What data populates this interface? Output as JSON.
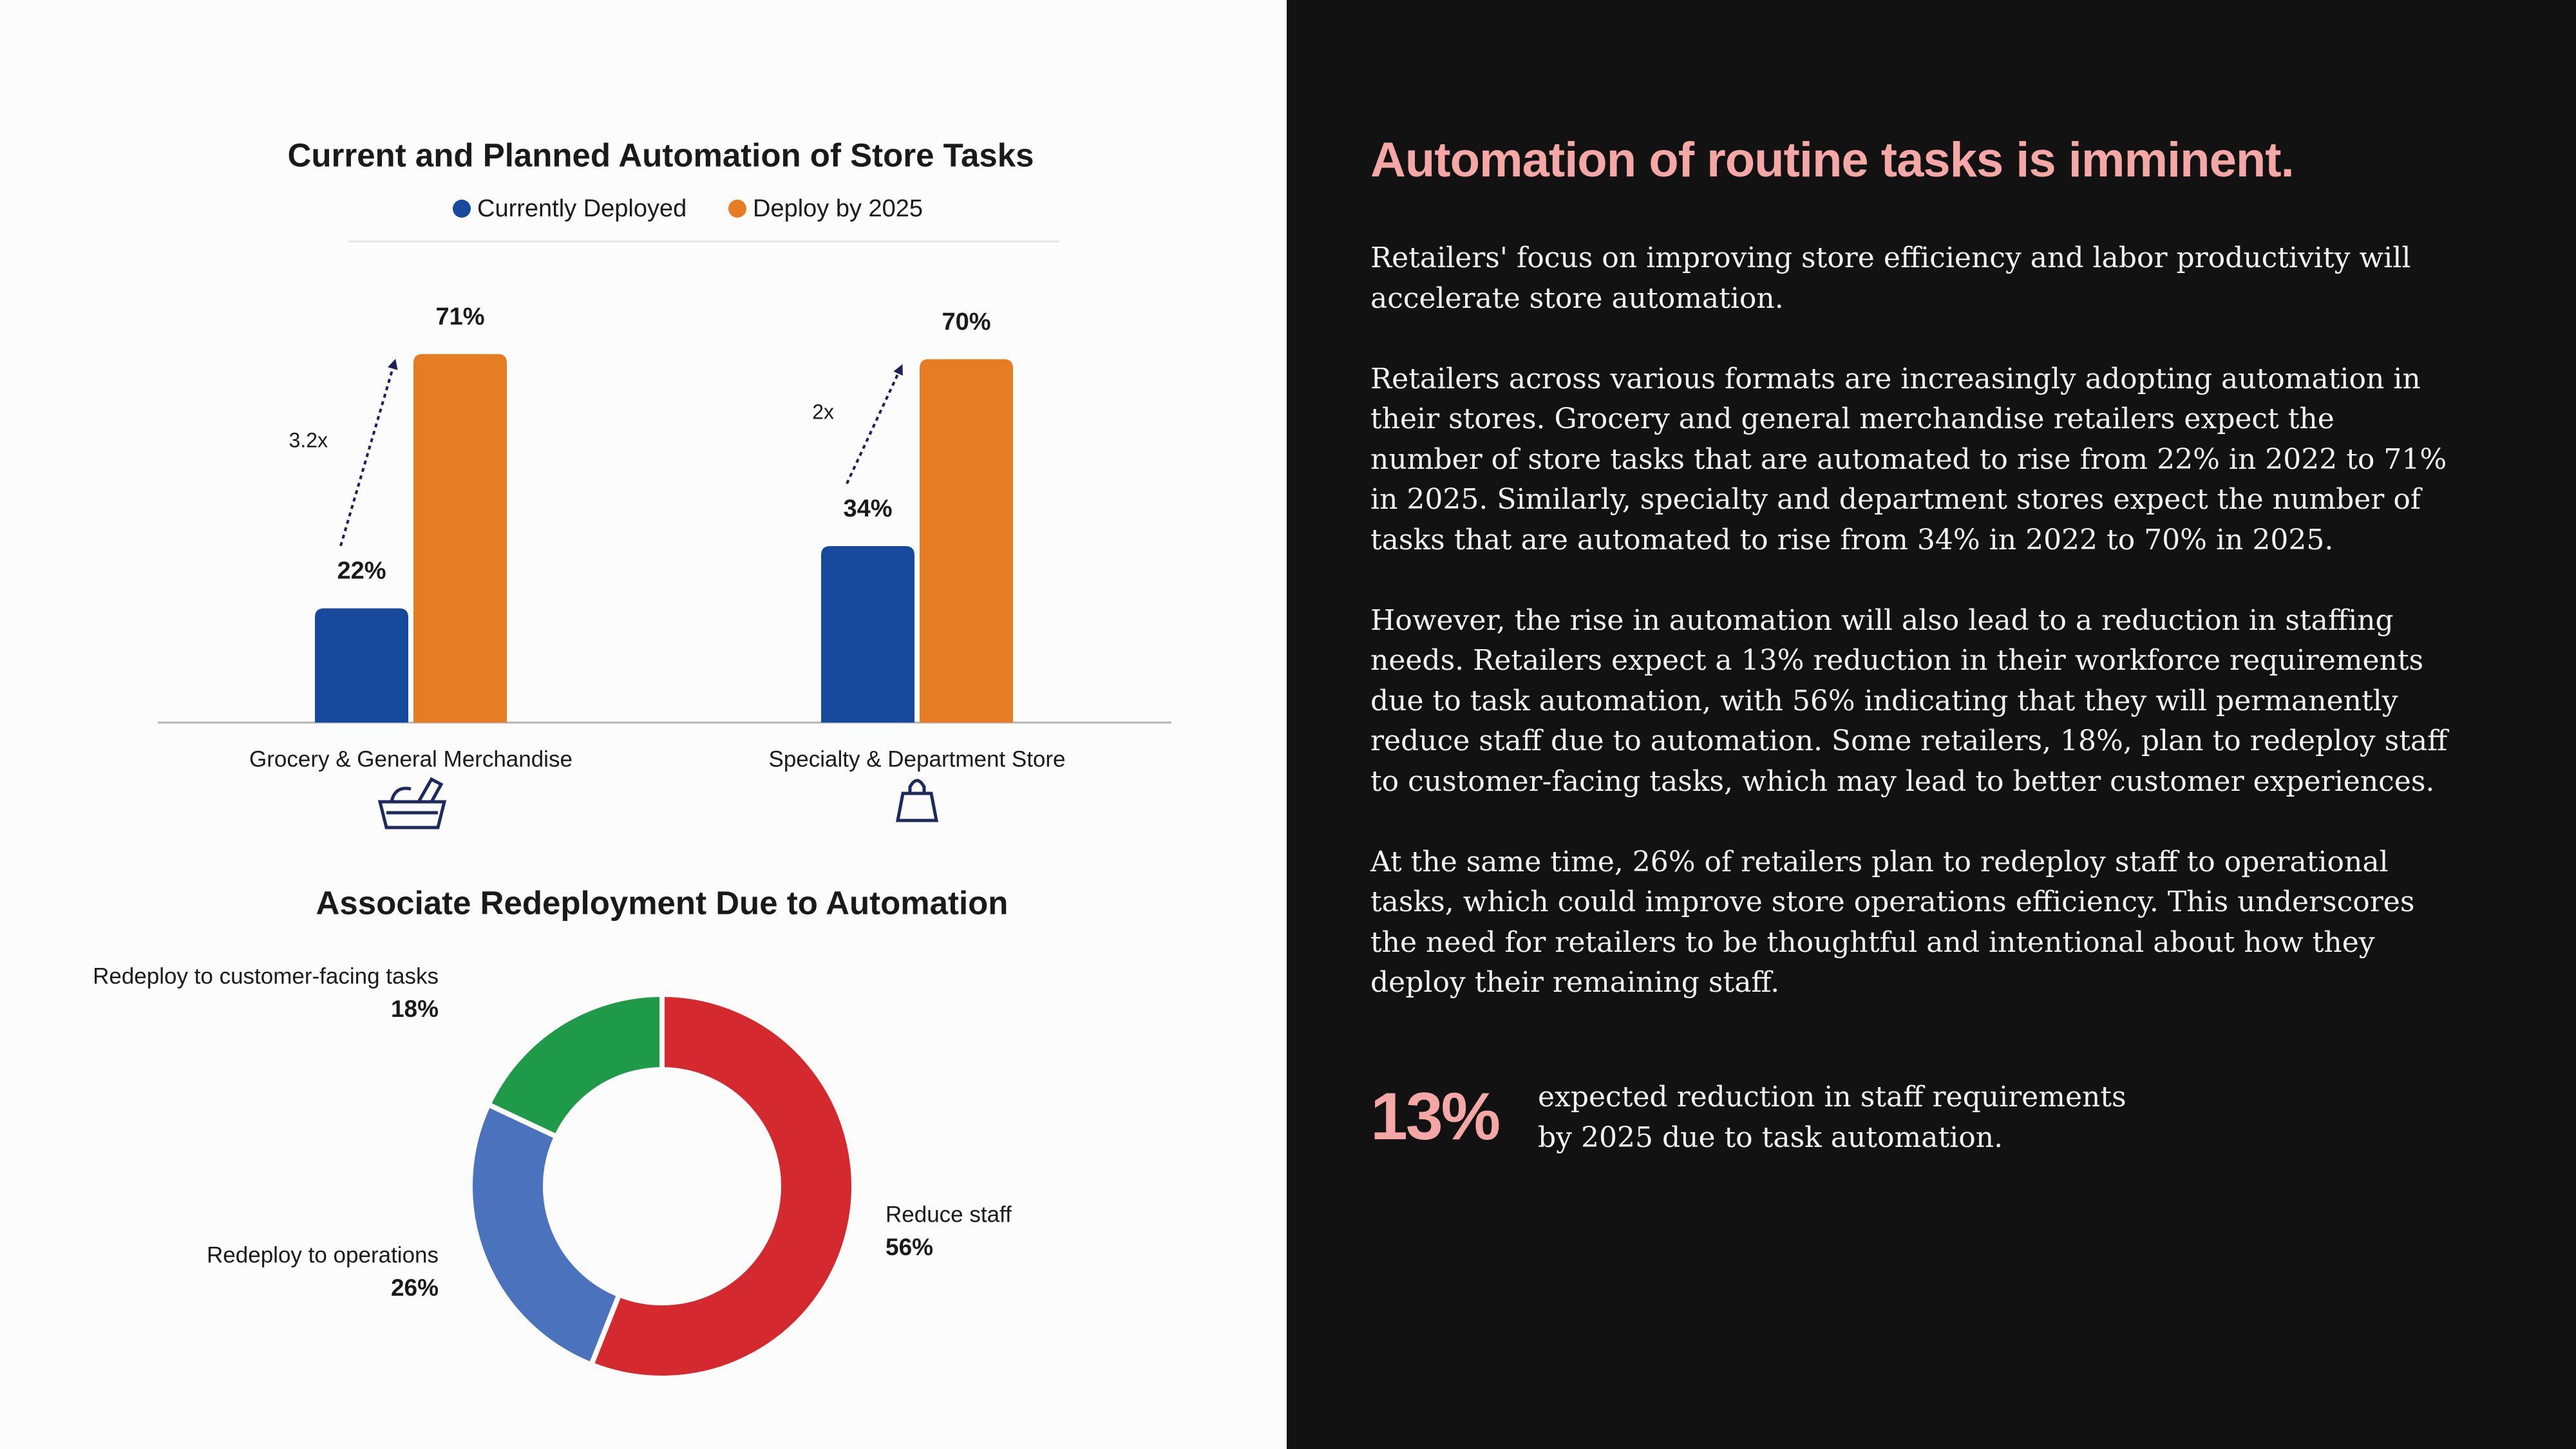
{
  "chart_data": [
    {
      "type": "bar",
      "title": "Current and Planned Automation of Store Tasks",
      "categories": [
        "Grocery & General Merchandise",
        "Specialty & Department Store"
      ],
      "series": [
        {
          "name": "Currently Deployed",
          "color": "#174a9c",
          "values": [
            22,
            34
          ],
          "value_labels": [
            "22%",
            "34%"
          ]
        },
        {
          "name": "Deploy by 2025",
          "color": "#e67d24",
          "values": [
            71,
            70
          ],
          "value_labels": [
            "71%",
            "70%"
          ]
        }
      ],
      "annotations": [
        "3.2x",
        "2x"
      ],
      "ylim": [
        0,
        100
      ]
    },
    {
      "type": "donut",
      "title": "Associate Redeployment Due to Automation",
      "categories": [
        "Reduce staff",
        "Redeploy to operations",
        "Redeploy to customer-facing tasks"
      ],
      "values": [
        56,
        26,
        18
      ],
      "value_labels": [
        "56%",
        "26%",
        "18%"
      ],
      "colors": [
        "#d42a2f",
        "#4a72bd",
        "#1e9a48"
      ]
    }
  ],
  "panel": {
    "title": "Automation of routine tasks is imminent.",
    "paragraphs": [
      "Retailers' focus on improving store efficiency and labor productivity will accelerate store automation.",
      "Retailers across various formats are increasingly adopting automation in their stores. Grocery and general merchandise retailers expect the number of store tasks that are automated to rise from 22% in 2022 to 71% in 2025. Similarly, specialty and department stores expect the number of tasks that are automated to rise from 34% in 2022 to 70% in 2025.",
      "However, the rise in automation will also lead to a reduction in staffing needs. Retailers expect a 13% reduction in their workforce requirements due to task automation, with 56% indicating that they will permanently reduce staff due to automation. Some retailers, 18%, plan to redeploy staff to customer-facing tasks, which may lead to better customer experiences.",
      "At the same time, 26% of retailers plan to redeploy staff to operational tasks, which could improve store operations efficiency. This underscores the need for retailers to be thoughtful and intentional about how they deploy their remaining staff."
    ],
    "stat": {
      "value": "13%",
      "text": "expected reduction in staff requirements by 2025 due to task automation."
    }
  }
}
